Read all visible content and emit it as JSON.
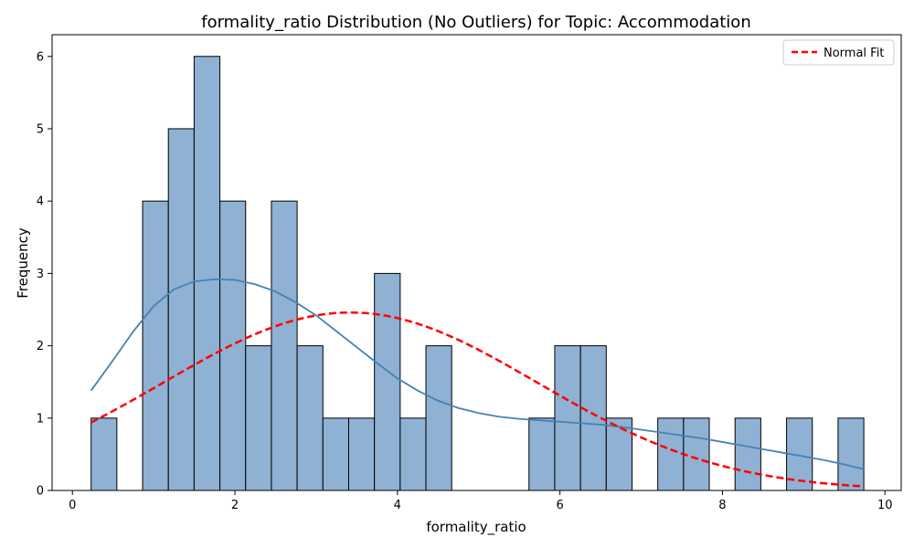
{
  "chart_data": {
    "type": "histogram",
    "title": "formality_ratio Distribution (No Outliers) for Topic: Accommodation",
    "xlabel": "formality_ratio",
    "ylabel": "Frequency",
    "xlim": [
      -0.25,
      10.2
    ],
    "ylim": [
      0,
      6.3
    ],
    "xticks": [
      0,
      2,
      4,
      6,
      8,
      10
    ],
    "yticks": [
      0,
      1,
      2,
      3,
      4,
      5,
      6
    ],
    "grid": false,
    "legend_position": "top-right",
    "bins": {
      "start": 0.23,
      "width": 0.317,
      "counts": [
        1,
        0,
        4,
        5,
        6,
        4,
        2,
        4,
        2,
        1,
        1,
        3,
        1,
        2,
        0,
        0,
        0,
        1,
        2,
        2,
        1,
        0,
        1,
        1,
        0,
        1,
        0,
        1,
        0,
        1
      ]
    },
    "kde": {
      "name": "",
      "color": "#4682b4",
      "x": [
        0.23,
        0.5,
        0.75,
        1.0,
        1.25,
        1.5,
        1.75,
        2.0,
        2.25,
        2.5,
        2.75,
        3.0,
        3.25,
        3.5,
        3.75,
        4.0,
        4.25,
        4.5,
        4.75,
        5.0,
        5.25,
        5.5,
        5.75,
        6.0,
        6.25,
        6.5,
        6.75,
        7.0,
        7.25,
        7.5,
        7.75,
        8.0,
        8.25,
        8.5,
        8.75,
        9.0,
        9.25,
        9.5,
        9.75
      ],
      "y": [
        1.38,
        1.8,
        2.2,
        2.55,
        2.78,
        2.89,
        2.92,
        2.91,
        2.85,
        2.75,
        2.6,
        2.42,
        2.2,
        1.98,
        1.76,
        1.55,
        1.38,
        1.24,
        1.14,
        1.07,
        1.02,
        0.99,
        0.97,
        0.95,
        0.93,
        0.91,
        0.88,
        0.84,
        0.8,
        0.76,
        0.72,
        0.67,
        0.62,
        0.57,
        0.52,
        0.47,
        0.42,
        0.36,
        0.29
      ]
    },
    "normal_fit": {
      "name": "Normal Fit",
      "color": "#ff0000",
      "mean": 3.42,
      "sd": 2.3,
      "peak": 2.46
    }
  },
  "colors": {
    "bar_fill": "#8fb1d3",
    "bar_edge": "#000000"
  }
}
